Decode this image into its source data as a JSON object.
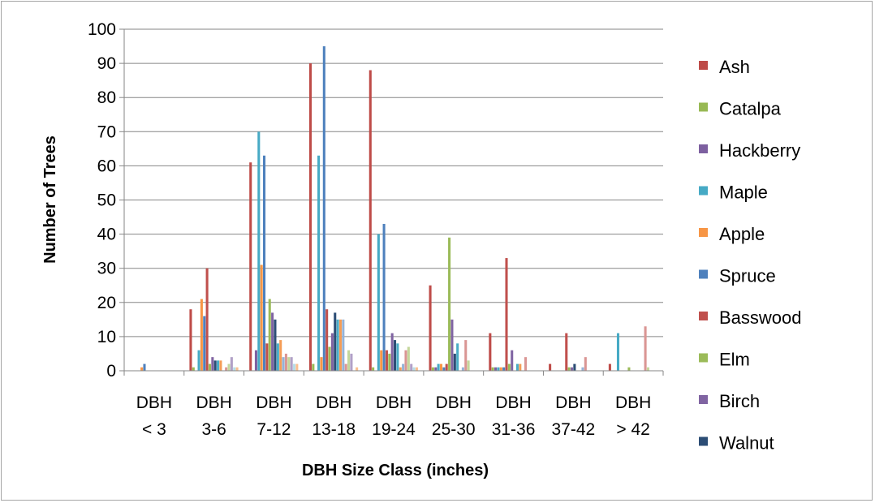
{
  "chart_data": {
    "type": "bar",
    "title": "",
    "xlabel": "DBH Size Class (inches)",
    "ylabel": "Number of Trees",
    "ylim": [
      0,
      100
    ],
    "yticks": [
      0,
      10,
      20,
      30,
      40,
      50,
      60,
      70,
      80,
      90,
      100
    ],
    "grid": "horizontal",
    "legend_position": "right",
    "categories": [
      [
        "DBH",
        "< 3"
      ],
      [
        "DBH",
        "3-6"
      ],
      [
        "DBH",
        "7-12"
      ],
      [
        "DBH",
        "13-18"
      ],
      [
        "DBH",
        "19-24"
      ],
      [
        "DBH",
        "25-30"
      ],
      [
        "DBH",
        "31-36"
      ],
      [
        "DBH",
        "37-42"
      ],
      [
        "DBH",
        "> 42"
      ]
    ],
    "series": [
      {
        "name": "Ash",
        "color": "#be4b48",
        "values": [
          0,
          18,
          61,
          90,
          88,
          25,
          11,
          2,
          2
        ]
      },
      {
        "name": "Catalpa",
        "color": "#98b954",
        "values": [
          0,
          1,
          0,
          2,
          1,
          1,
          1,
          0,
          0
        ]
      },
      {
        "name": "Hackberry",
        "color": "#7d60a0",
        "values": [
          0,
          0,
          6,
          0,
          0,
          1,
          1,
          0,
          0
        ]
      },
      {
        "name": "Maple",
        "color": "#46aac5",
        "values": [
          0,
          6,
          70,
          63,
          40,
          2,
          1,
          0,
          11
        ]
      },
      {
        "name": "Apple",
        "color": "#f79646",
        "values": [
          1,
          21,
          31,
          4,
          6,
          2,
          1,
          0,
          0
        ]
      },
      {
        "name": "Spruce",
        "color": "#4f81bd",
        "values": [
          2,
          16,
          63,
          95,
          43,
          1,
          1,
          0,
          0
        ]
      },
      {
        "name": "Basswood",
        "color": "#c0504d",
        "values": [
          0,
          30,
          8,
          18,
          6,
          2,
          33,
          11,
          0
        ]
      },
      {
        "name": "Elm",
        "color": "#9bbb59",
        "values": [
          0,
          2,
          21,
          7,
          5,
          39,
          2,
          1,
          1
        ]
      },
      {
        "name": "Birch",
        "color": "#8064a2",
        "values": [
          0,
          4,
          17,
          11,
          11,
          15,
          6,
          1,
          0
        ]
      },
      {
        "name": "Walnut",
        "color": "#2c4d75",
        "values": [
          0,
          3,
          15,
          17,
          9,
          5,
          0,
          2,
          0
        ]
      },
      {
        "name": "",
        "color": "#4bacc6",
        "values": [
          0,
          3,
          8,
          15,
          8,
          8,
          2,
          0,
          0
        ]
      },
      {
        "name": "",
        "color": "#f59d56",
        "values": [
          0,
          3,
          9,
          15,
          1,
          0,
          2,
          0,
          0
        ]
      },
      {
        "name": "",
        "color": "#95b3d7",
        "values": [
          0,
          0,
          4,
          15,
          2,
          1,
          0,
          1,
          0
        ]
      },
      {
        "name": "",
        "color": "#da9694",
        "values": [
          0,
          1,
          5,
          2,
          6,
          9,
          4,
          4,
          13
        ]
      },
      {
        "name": "",
        "color": "#c4d79b",
        "values": [
          0,
          2,
          4,
          6,
          7,
          3,
          0,
          0,
          1
        ]
      },
      {
        "name": "",
        "color": "#b1a0c7",
        "values": [
          0,
          4,
          4,
          5,
          2,
          0,
          0,
          0,
          0
        ]
      },
      {
        "name": "",
        "color": "#b7dee8",
        "values": [
          0,
          1,
          2,
          0,
          1,
          0,
          0,
          0,
          0
        ]
      },
      {
        "name": "",
        "color": "#fabf8f",
        "values": [
          0,
          1,
          2,
          1,
          1,
          0,
          0,
          0,
          0
        ]
      }
    ]
  }
}
